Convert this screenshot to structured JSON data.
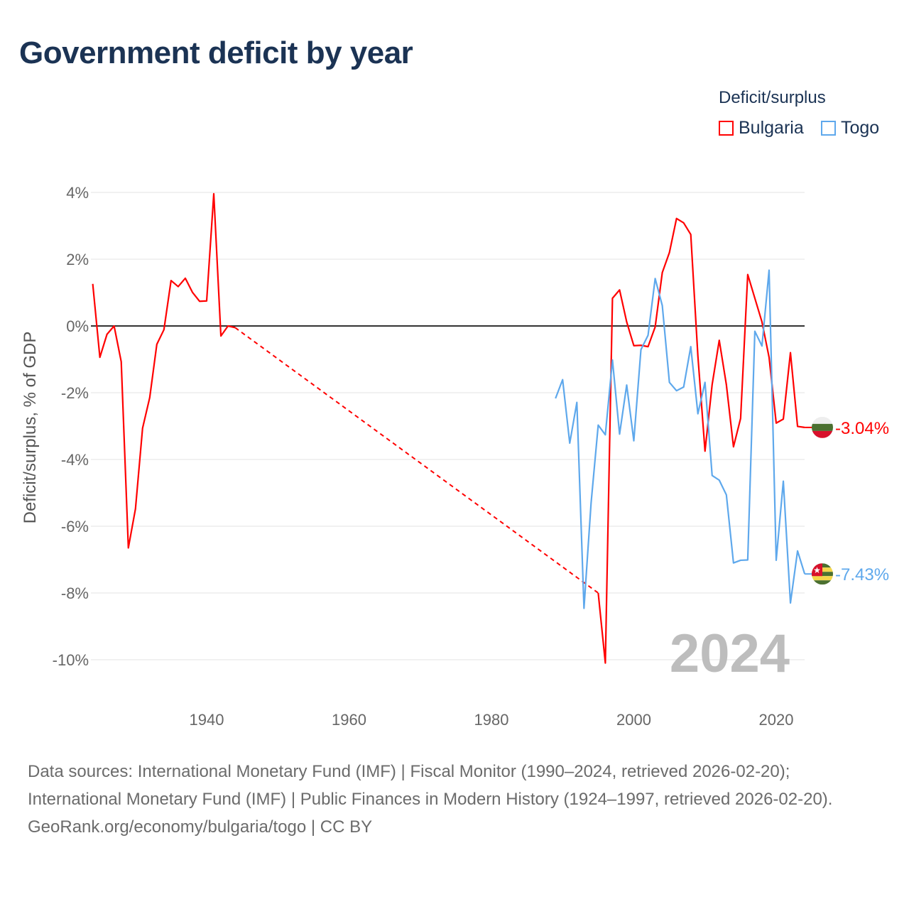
{
  "title": "Government deficit by year",
  "legend": {
    "title": "Deficit/surplus",
    "items": [
      {
        "label": "Bulgaria",
        "color": "#ff0000"
      },
      {
        "label": "Togo",
        "color": "#5ea8ec"
      }
    ]
  },
  "year_watermark": "2024",
  "footer": {
    "sources": "Data sources: International Monetary Fund (IMF) | Fiscal Monitor (1990–2024, retrieved 2026-02-20); International Monetary Fund (IMF) | Public Finances in Modern History (1924–1997, retrieved 2026-02-20).",
    "credit": "GeoRank.org/economy/bulgaria/togo | CC BY"
  },
  "chart_data": {
    "type": "line",
    "title": "Government deficit by year",
    "xlabel": "",
    "ylabel": "Deficit/surplus, % of GDP",
    "xlim": [
      1923.8,
      2024.2
    ],
    "ylim": [
      -10,
      4
    ],
    "x_ticks": [
      1940,
      1960,
      1980,
      2000,
      2020
    ],
    "y_ticks": [
      4,
      2,
      0,
      -2,
      -4,
      -6,
      -8,
      -10
    ],
    "y_tick_labels": [
      "4%",
      "2%",
      "0%",
      "-2%",
      "-4%",
      "-6%",
      "-8%",
      "-10%"
    ],
    "grid": true,
    "legend_position": "top-right",
    "series": [
      {
        "name": "Bulgaria",
        "color": "#ff0000",
        "end_label": "-3.04%",
        "flag": "bulgaria-flag",
        "points": [
          [
            1924,
            1.26
          ],
          [
            1925,
            -0.94
          ],
          [
            1926,
            -0.25
          ],
          [
            1927,
            0.0
          ],
          [
            1928,
            -1.07
          ],
          [
            1929,
            -6.65
          ],
          [
            1930,
            -5.48
          ],
          [
            1931,
            -3.06
          ],
          [
            1932,
            -2.15
          ],
          [
            1933,
            -0.55
          ],
          [
            1934,
            -0.11
          ],
          [
            1935,
            1.36
          ],
          [
            1936,
            1.18
          ],
          [
            1937,
            1.43
          ],
          [
            1938,
            1.01
          ],
          [
            1939,
            0.74
          ],
          [
            1940,
            0.75
          ],
          [
            1941,
            3.96
          ],
          [
            1942,
            -0.3
          ],
          [
            1943,
            0.0
          ],
          [
            1944,
            -0.05
          ],
          [
            1995,
            -8.0
          ],
          [
            1996,
            -10.1
          ],
          [
            1997,
            0.83
          ],
          [
            1998,
            1.08
          ],
          [
            1999,
            0.12
          ],
          [
            2000,
            -0.59
          ],
          [
            2001,
            -0.58
          ],
          [
            2002,
            -0.62
          ],
          [
            2003,
            -0.03
          ],
          [
            2004,
            1.6
          ],
          [
            2005,
            2.2
          ],
          [
            2006,
            3.22
          ],
          [
            2007,
            3.09
          ],
          [
            2008,
            2.74
          ],
          [
            2009,
            -0.9
          ],
          [
            2010,
            -3.75
          ],
          [
            2011,
            -1.76
          ],
          [
            2012,
            -0.43
          ],
          [
            2013,
            -1.76
          ],
          [
            2014,
            -3.62
          ],
          [
            2015,
            -2.77
          ],
          [
            2016,
            1.54
          ],
          [
            2017,
            0.83
          ],
          [
            2018,
            0.12
          ],
          [
            2019,
            -0.94
          ],
          [
            2020,
            -2.91
          ],
          [
            2021,
            -2.79
          ],
          [
            2022,
            -0.8
          ],
          [
            2023,
            -3.01
          ],
          [
            2024,
            -3.04
          ]
        ]
      },
      {
        "name": "Togo",
        "color": "#5ea8ec",
        "end_label": "-7.43%",
        "flag": "togo-flag",
        "points": [
          [
            1989,
            -2.17
          ],
          [
            1990,
            -1.61
          ],
          [
            1991,
            -3.51
          ],
          [
            1992,
            -2.29
          ],
          [
            1993,
            -8.46
          ],
          [
            1994,
            -5.3
          ],
          [
            1995,
            -2.97
          ],
          [
            1996,
            -3.26
          ],
          [
            1997,
            -1.02
          ],
          [
            1998,
            -3.24
          ],
          [
            1999,
            -1.77
          ],
          [
            2000,
            -3.44
          ],
          [
            2001,
            -0.71
          ],
          [
            2002,
            -0.28
          ],
          [
            2003,
            1.42
          ],
          [
            2004,
            0.61
          ],
          [
            2005,
            -1.69
          ],
          [
            2006,
            -1.94
          ],
          [
            2007,
            -1.83
          ],
          [
            2008,
            -0.62
          ],
          [
            2009,
            -2.63
          ],
          [
            2010,
            -1.69
          ],
          [
            2011,
            -4.48
          ],
          [
            2012,
            -4.62
          ],
          [
            2013,
            -5.06
          ],
          [
            2014,
            -7.1
          ],
          [
            2015,
            -7.02
          ],
          [
            2016,
            -7.01
          ],
          [
            2017,
            -0.16
          ],
          [
            2018,
            -0.6
          ],
          [
            2019,
            1.67
          ],
          [
            2020,
            -7.02
          ],
          [
            2021,
            -4.65
          ],
          [
            2022,
            -8.3
          ],
          [
            2023,
            -6.74
          ],
          [
            2024,
            -7.43
          ]
        ]
      }
    ]
  }
}
